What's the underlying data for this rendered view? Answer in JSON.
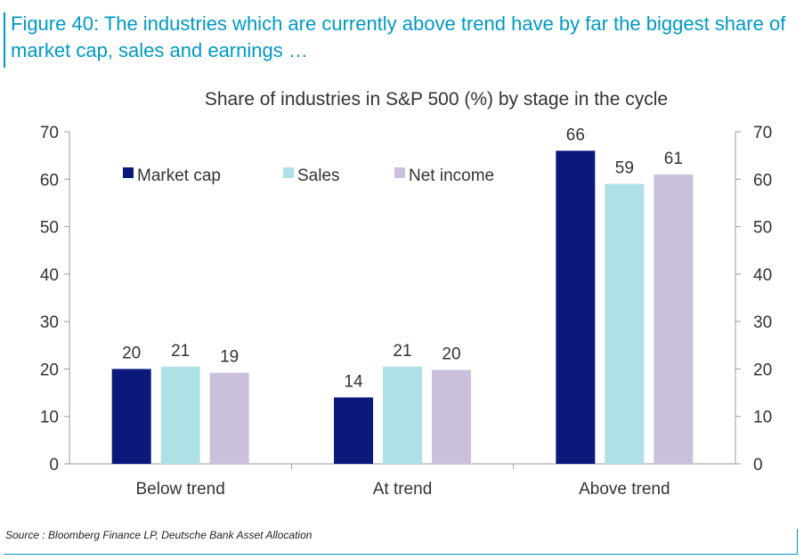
{
  "figure_title": "Figure 40: The industries which are currently above trend have by far the biggest share of market cap, sales and earnings …",
  "source_text": "Source : Bloomberg Finance LP, Deutsche Bank Asset Allocation",
  "colors": {
    "accent": "#0099c4",
    "market_cap": "#0b1a7a",
    "sales": "#ade1e6",
    "net_income": "#cbc0db"
  },
  "chart_data": {
    "type": "bar",
    "title": "Share of industries in S&P 500 (%) by stage in the cycle",
    "categories": [
      "Below trend",
      "At trend",
      "Above trend"
    ],
    "series": [
      {
        "name": "Market cap",
        "values": [
          20,
          14,
          66
        ],
        "labels": [
          "20",
          "14",
          "66"
        ]
      },
      {
        "name": "Sales",
        "values": [
          20.5,
          20.5,
          59
        ],
        "labels": [
          "21",
          "21",
          "59"
        ]
      },
      {
        "name": "Net income",
        "values": [
          19.2,
          19.8,
          61
        ],
        "labels": [
          "19",
          "20",
          "61"
        ]
      }
    ],
    "ylim": [
      0,
      70
    ],
    "yticks": [
      "0",
      "10",
      "20",
      "30",
      "40",
      "50",
      "60",
      "70"
    ],
    "legend_position": "top-left",
    "grid": false,
    "secondary_axis": true
  }
}
